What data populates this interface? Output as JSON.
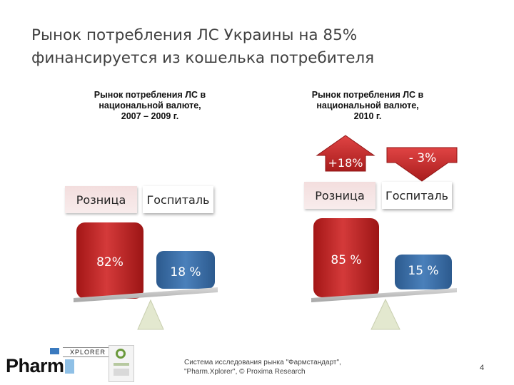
{
  "title_line1": "Рынок потребления ЛС Украины на 85%",
  "title_line2": "финансируется из кошелька потребителя",
  "left": {
    "subtitle_1": "Рынок потребления ЛС в",
    "subtitle_2": "национальной валюте,",
    "subtitle_3": "2007 – 2009 г.",
    "retail_label": "Розница",
    "hospital_label": "Госпиталь",
    "retail_value": "82%",
    "hospital_value": "18 %"
  },
  "right": {
    "subtitle_1": "Рынок потребления ЛС в",
    "subtitle_2": "национальной валюте,",
    "subtitle_3": "2010 г.",
    "retail_label": "Розница",
    "hospital_label": "Госпиталь",
    "retail_value": "85 %",
    "hospital_value": "15 %",
    "retail_change": "+18%",
    "hospital_change": "- 3%"
  },
  "footer_line1": "Система исследования рынка \"Фармстандарт\",",
  "footer_line2": "\"Pharm.Xplorer\", © Proxima Research",
  "page_number": "4",
  "logo": {
    "pharm": "Pharm",
    "xplorer": "XPLORER"
  },
  "colors": {
    "bar_red": "#c0201f",
    "bar_blue": "#3a6fa8",
    "arrow_red": "#c82a2a",
    "fulcrum": "#e3e8cf",
    "scale": "#b8b8b8"
  }
}
